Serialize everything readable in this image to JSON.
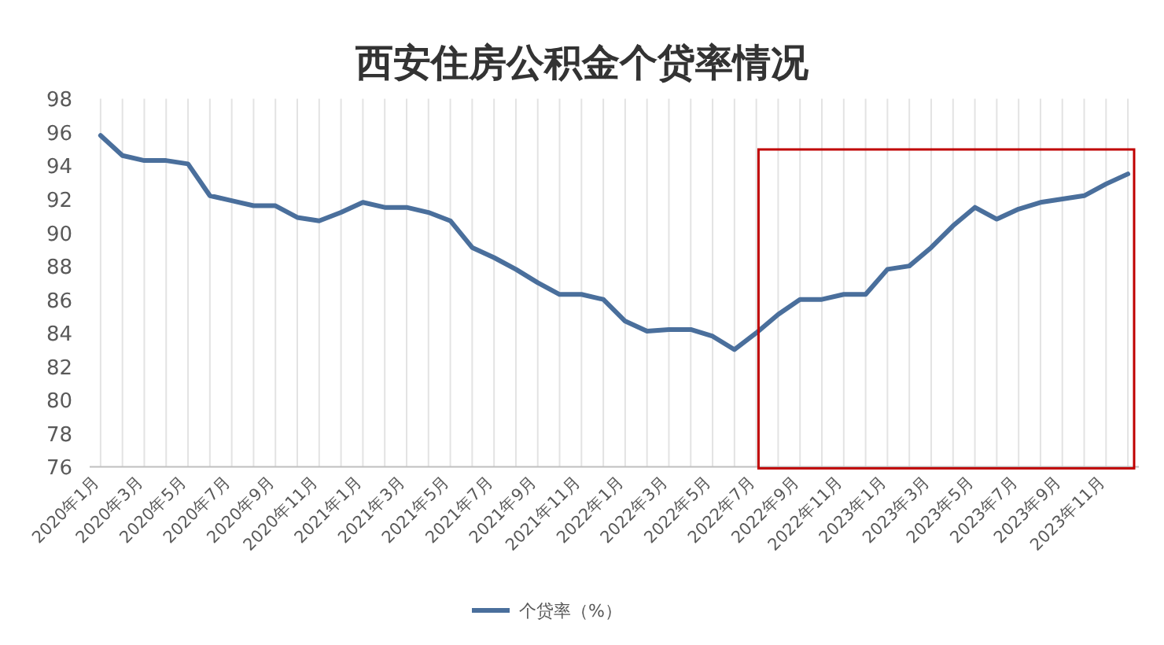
{
  "chart_data": {
    "type": "line",
    "title": "西安住房公积金个贷率情况",
    "categories": [
      "2020年1月",
      null,
      "2020年3月",
      null,
      "2020年5月",
      null,
      "2020年7月",
      null,
      "2020年9月",
      null,
      "2020年11月",
      null,
      "2021年1月",
      null,
      "2021年3月",
      null,
      "2021年5月",
      null,
      "2021年7月",
      null,
      "2021年9月",
      null,
      "2021年11月",
      null,
      "2022年1月",
      null,
      "2022年3月",
      null,
      "2022年5月",
      null,
      "2022年7月",
      null,
      "2022年9月",
      null,
      "2022年11月",
      null,
      "2023年1月",
      null,
      "2023年3月",
      null,
      "2023年5月",
      null,
      "2023年7月",
      null,
      "2023年9月",
      null,
      "2023年11月",
      null
    ],
    "series": [
      {
        "name": "个贷率（%）",
        "color": "#4a6f9c",
        "values": [
          95.8,
          94.6,
          94.3,
          94.3,
          94.1,
          92.2,
          91.9,
          91.6,
          91.6,
          90.9,
          90.7,
          91.2,
          91.8,
          91.5,
          91.5,
          91.2,
          90.7,
          89.1,
          88.5,
          87.8,
          87.0,
          86.3,
          86.3,
          86.0,
          84.7,
          84.1,
          84.2,
          84.2,
          83.8,
          83.0,
          84.0,
          85.1,
          86.0,
          86.0,
          86.3,
          86.3,
          87.8,
          88.0,
          89.1,
          90.4,
          91.5,
          90.8,
          91.4,
          91.8,
          92.0,
          92.2,
          92.9,
          93.5
        ]
      }
    ],
    "ylim": [
      76,
      98
    ],
    "yticks": [
      76,
      78,
      80,
      82,
      84,
      86,
      88,
      90,
      92,
      94,
      96,
      98
    ],
    "grid": "x",
    "legend": "bottom",
    "marker": "none",
    "line_style": "solid"
  }
}
